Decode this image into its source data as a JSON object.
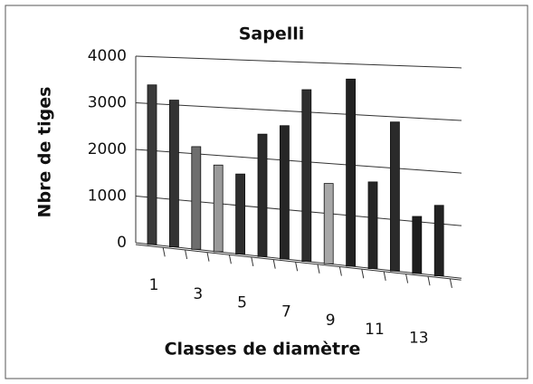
{
  "chart_data": {
    "type": "bar",
    "title": "Sapelli",
    "x_label": "Classes de diamètre",
    "y_label": "Nbre de tiges",
    "categories": [
      "1",
      null,
      "3",
      null,
      "5",
      null,
      "7",
      null,
      "9",
      null,
      "11",
      null,
      "13",
      null
    ],
    "values": [
      3400,
      3100,
      2150,
      1800,
      1650,
      2500,
      2700,
      3450,
      1600,
      3700,
      1700,
      2900,
      1100,
      1350
    ],
    "colors": [
      "#3a3a3a",
      "#333333",
      "#6e6e6e",
      "#9a9a9a",
      "#2e2e2e",
      "#2a2a2a",
      "#262626",
      "#2e2e2e",
      "#a8a8a8",
      "#222222",
      "#262626",
      "#2a2a2a",
      "#1e1e1e",
      "#222222"
    ],
    "ylim": [
      0,
      4000
    ],
    "yticks": [
      0,
      1000,
      2000,
      3000,
      4000
    ],
    "grid": true
  }
}
